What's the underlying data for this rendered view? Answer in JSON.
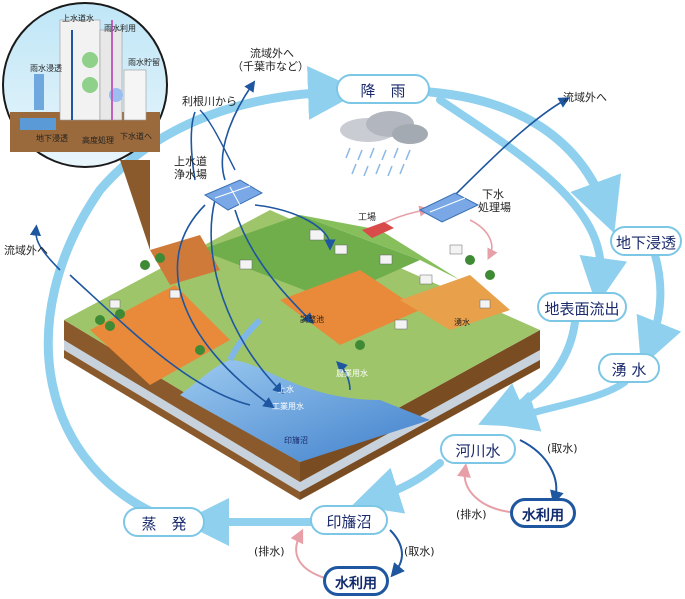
{
  "nodes": {
    "rain": "降　雨",
    "infiltration": "地下浸透",
    "surface_runoff": "地表面流出",
    "spring": "湧 水",
    "river": "河川水",
    "river_use": "水利用",
    "inbanuma": "印旛沼",
    "inbanuma_use": "水利用",
    "evaporation": "蒸　発"
  },
  "labels": {
    "out_chiba_1": "流域外へ",
    "out_chiba_2": "（千葉市など）",
    "tone_from": "利根川から",
    "out_right": "流域外へ",
    "out_left": "流域外へ",
    "purification_1": "上水道",
    "purification_2": "浄水場",
    "sewage_1": "下水",
    "sewage_2": "処理場",
    "factory": "工場",
    "river_intake": "(取水)",
    "river_drain": "(排水)",
    "numa_drain": "(排水)",
    "numa_intake": "(取水)"
  },
  "map_labels": {
    "jousui": "上水",
    "kougyou": "工業用水",
    "nougyou": "農業用水",
    "inbanuma": "印旛沼",
    "pond": "調整池",
    "yusui": "湧水"
  },
  "inset": {
    "l1": "上水道水",
    "l2": "雨水利用",
    "l3": "雨水浸透",
    "l4": "雨水貯留",
    "l5": "下水道へ",
    "l6": "高度処理",
    "l7": "地下浸透"
  },
  "colors": {
    "cycle_light": "#8fd0ee",
    "cycle_dark": "#1e56a0",
    "drain_pink": "#e8a0a8",
    "ground": "#8a5a2c",
    "water": "#5a9ad6"
  }
}
